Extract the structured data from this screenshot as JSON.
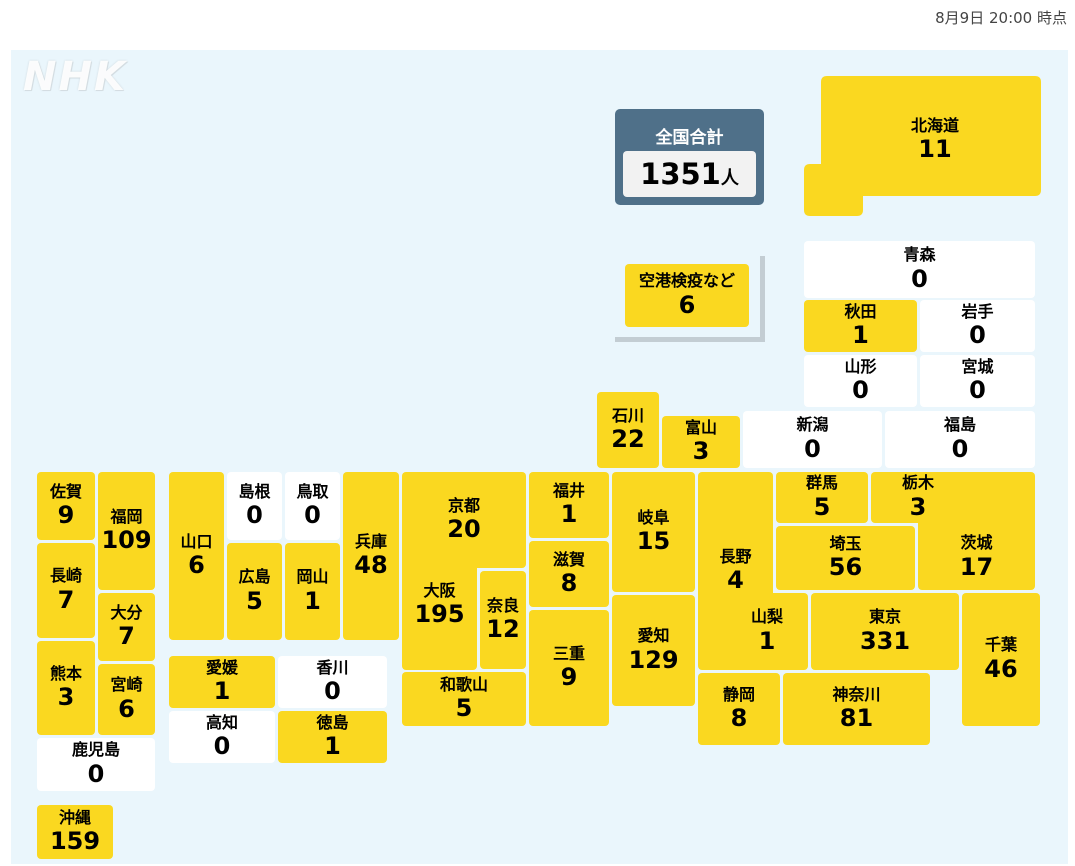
{
  "timestamp": "8月9日 20:00 時点",
  "logo": "NHK",
  "total": {
    "label": "全国合計",
    "count": "1351",
    "unit": "人"
  },
  "colors": {
    "positive": "#fad820",
    "zero": "#ffffff",
    "total_box": "#4f7089",
    "background": "#eaf6fc"
  },
  "prefectures": [
    {
      "id": "hokkaido",
      "name": "北海道",
      "count": 11
    },
    {
      "id": "aomori",
      "name": "青森",
      "count": 0
    },
    {
      "id": "akita",
      "name": "秋田",
      "count": 1
    },
    {
      "id": "iwate",
      "name": "岩手",
      "count": 0
    },
    {
      "id": "yamagata",
      "name": "山形",
      "count": 0
    },
    {
      "id": "miyagi",
      "name": "宮城",
      "count": 0
    },
    {
      "id": "airport",
      "name": "空港検疫など",
      "count": 6
    },
    {
      "id": "ishikawa",
      "name": "石川",
      "count": 22
    },
    {
      "id": "toyama",
      "name": "富山",
      "count": 3
    },
    {
      "id": "niigata",
      "name": "新潟",
      "count": 0
    },
    {
      "id": "fukushima",
      "name": "福島",
      "count": 0
    },
    {
      "id": "saga",
      "name": "佐賀",
      "count": 9
    },
    {
      "id": "fukuoka",
      "name": "福岡",
      "count": 109
    },
    {
      "id": "nagasaki",
      "name": "長崎",
      "count": 7
    },
    {
      "id": "oita",
      "name": "大分",
      "count": 7
    },
    {
      "id": "kumamoto",
      "name": "熊本",
      "count": 3
    },
    {
      "id": "miyazaki",
      "name": "宮崎",
      "count": 6
    },
    {
      "id": "kagoshima",
      "name": "鹿児島",
      "count": 0
    },
    {
      "id": "okinawa",
      "name": "沖縄",
      "count": 159
    },
    {
      "id": "yamaguchi",
      "name": "山口",
      "count": 6
    },
    {
      "id": "shimane",
      "name": "島根",
      "count": 0
    },
    {
      "id": "tottori",
      "name": "鳥取",
      "count": 0
    },
    {
      "id": "hiroshima",
      "name": "広島",
      "count": 5
    },
    {
      "id": "okayama",
      "name": "岡山",
      "count": 1
    },
    {
      "id": "hyogo",
      "name": "兵庫",
      "count": 48
    },
    {
      "id": "kyoto",
      "name": "京都",
      "count": 20
    },
    {
      "id": "osaka",
      "name": "大阪",
      "count": 195
    },
    {
      "id": "nara",
      "name": "奈良",
      "count": 12
    },
    {
      "id": "wakayama",
      "name": "和歌山",
      "count": 5
    },
    {
      "id": "fukui",
      "name": "福井",
      "count": 1
    },
    {
      "id": "shiga",
      "name": "滋賀",
      "count": 8
    },
    {
      "id": "mie",
      "name": "三重",
      "count": 9
    },
    {
      "id": "gifu",
      "name": "岐阜",
      "count": 15
    },
    {
      "id": "aichi",
      "name": "愛知",
      "count": 129
    },
    {
      "id": "nagano",
      "name": "長野",
      "count": 4
    },
    {
      "id": "gunma",
      "name": "群馬",
      "count": 5
    },
    {
      "id": "tochigi",
      "name": "栃木",
      "count": 3
    },
    {
      "id": "ibaraki",
      "name": "茨城",
      "count": 17
    },
    {
      "id": "saitama",
      "name": "埼玉",
      "count": 56
    },
    {
      "id": "yamanashi",
      "name": "山梨",
      "count": 1
    },
    {
      "id": "tokyo",
      "name": "東京",
      "count": 331
    },
    {
      "id": "chiba",
      "name": "千葉",
      "count": 46
    },
    {
      "id": "shizuoka",
      "name": "静岡",
      "count": 8
    },
    {
      "id": "kanagawa",
      "name": "神奈川",
      "count": 81
    },
    {
      "id": "ehime",
      "name": "愛媛",
      "count": 1
    },
    {
      "id": "kagawa",
      "name": "香川",
      "count": 0
    },
    {
      "id": "kochi",
      "name": "高知",
      "count": 0
    },
    {
      "id": "tokushima",
      "name": "徳島",
      "count": 1
    }
  ]
}
